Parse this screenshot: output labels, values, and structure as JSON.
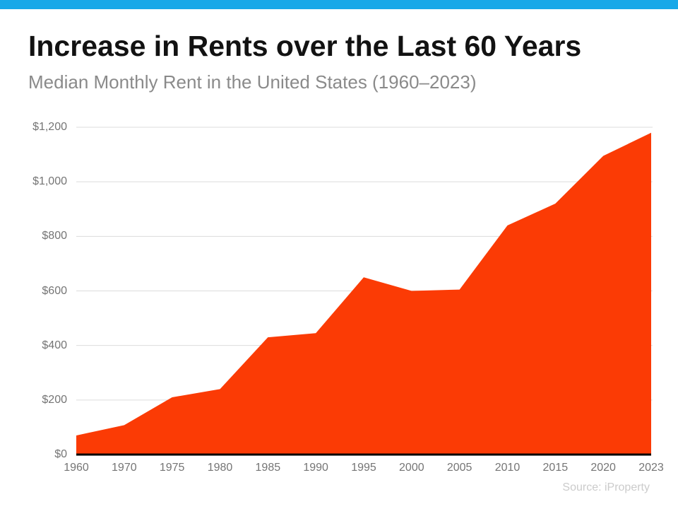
{
  "page": {
    "accent_bar_color": "#18A8E8",
    "background_color": "#FFFFFF"
  },
  "header": {
    "title": "Increase in Rents over the Last 60 Years",
    "subtitle": "Median Monthly Rent in the United States (1960–2023)"
  },
  "footer": {
    "source": "Source: iProperty"
  },
  "chart_data": {
    "type": "area",
    "title": "Increase in Rents over the Last 60 Years",
    "subtitle": "Median Monthly Rent in the United States (1960–2023)",
    "categories": [
      "1960",
      "1970",
      "1975",
      "1980",
      "1985",
      "1990",
      "1995",
      "2000",
      "2005",
      "2010",
      "2015",
      "2020",
      "2023"
    ],
    "values": [
      70,
      108,
      210,
      240,
      430,
      445,
      650,
      600,
      605,
      840,
      920,
      1095,
      1180
    ],
    "xlabel": "",
    "ylabel": "",
    "ylim": [
      0,
      1200
    ],
    "ytick_step": 200,
    "ytick_labels": [
      "$0",
      "$200",
      "$400",
      "$600",
      "$800",
      "$1,000",
      "$1,200"
    ],
    "grid": true,
    "legend": false,
    "area_color": "#FB3B05",
    "baseline_color": "#000000",
    "grid_color": "#DCDCDC",
    "tick_label_color": "#757575"
  }
}
